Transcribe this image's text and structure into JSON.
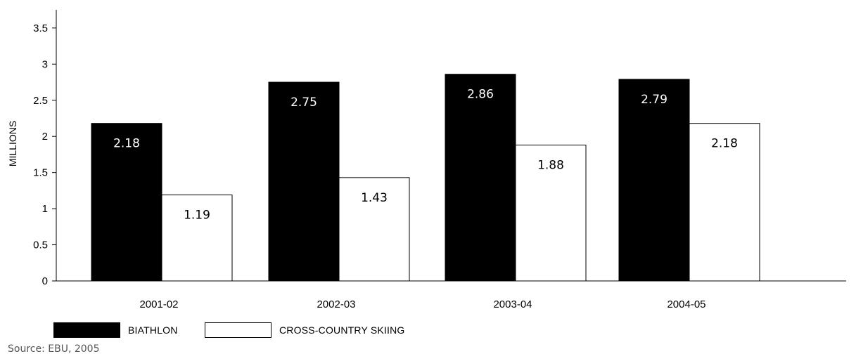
{
  "chart_data": {
    "type": "bar",
    "categories": [
      "2001-02",
      "2002-03",
      "2003-04",
      "2004-05"
    ],
    "series": [
      {
        "name": "BIATHLON",
        "values": [
          2.18,
          2.75,
          2.86,
          2.79
        ],
        "color": "#000000"
      },
      {
        "name": "CROSS-COUNTRY SKIING",
        "values": [
          1.19,
          1.43,
          1.88,
          2.18
        ],
        "color": "#ffffff"
      }
    ],
    "ylabel": "MILLIONS",
    "xlabel": "",
    "yticks": [
      0,
      0.5,
      1,
      1.5,
      2,
      2.5,
      3,
      3.5
    ],
    "ytick_labels": [
      "0",
      "0.5",
      "1",
      "1.5",
      "2",
      "2.5",
      "3",
      "3.5"
    ],
    "ylim": [
      0,
      3.8
    ],
    "grid": false,
    "legend_position": "bottom-left"
  },
  "source": "Source: EBU, 2005"
}
